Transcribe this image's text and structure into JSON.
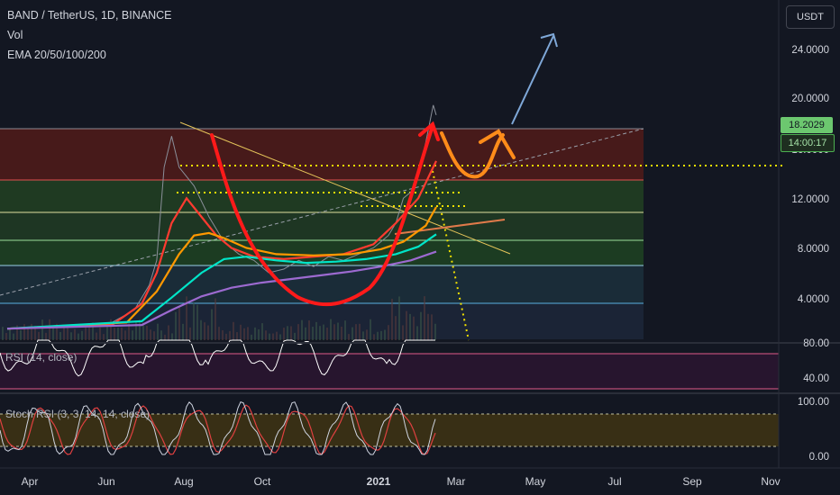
{
  "header": {
    "symbol": "BAND / TetherUS, 1D, BINANCE",
    "vol": "Vol",
    "ema": "EMA 20/50/100/200"
  },
  "currency_button": "USDT",
  "price_tag": {
    "price": "18.2029",
    "countdown": "14:00:17"
  },
  "indicators": {
    "rsi": "RSI (14, close)",
    "stoch": "Stoch RSI (3, 3, 14, 14, close)"
  },
  "colors": {
    "background": "#131722",
    "rsi_line": "#ffffff",
    "stoch_k": "#cfd4e0",
    "stoch_d": "#e04040",
    "cup_annotation": "#ff1a1a",
    "projection_orange": "#ff8c1a",
    "target_arrow": "#7fa8d8"
  },
  "chart_data": [
    {
      "type": "line",
      "title": "BAND / TetherUS, 1D, BINANCE",
      "y_axis": {
        "ticks": [
          "24.0000",
          "20.0000",
          "16.0000",
          "12.0000",
          "8.0000",
          "4.0000"
        ],
        "range": [
          0,
          26
        ]
      },
      "x_axis": {
        "ticks": [
          "Apr",
          "Jun",
          "Aug",
          "Oct",
          "2021",
          "Mar",
          "May",
          "Jul",
          "Sep",
          "Nov"
        ]
      },
      "current_price": 18.2029,
      "series": [
        {
          "name": "BANDUSDT",
          "color": "#8a8f99",
          "points": [
            [
              0,
              1.0
            ],
            [
              6,
              1.1
            ],
            [
              10,
              1.2
            ],
            [
              14,
              1.5
            ],
            [
              17,
              2.5
            ],
            [
              19,
              4.5
            ],
            [
              20,
              6.5
            ],
            [
              21,
              14.0
            ],
            [
              22,
              16.5
            ],
            [
              23,
              14.0
            ],
            [
              25,
              12.5
            ],
            [
              27,
              10.0
            ],
            [
              29,
              8.0
            ],
            [
              31,
              7.0
            ],
            [
              33,
              6.5
            ],
            [
              35,
              5.5
            ],
            [
              37,
              5.8
            ],
            [
              39,
              6.5
            ],
            [
              41,
              6.0
            ],
            [
              43,
              6.8
            ],
            [
              45,
              6.5
            ],
            [
              47,
              7.0
            ],
            [
              49,
              7.5
            ],
            [
              51,
              8.5
            ],
            [
              52,
              9.5
            ],
            [
              53,
              11.5
            ],
            [
              54,
              12.0
            ],
            [
              55,
              13.5
            ],
            [
              56,
              16.0
            ],
            [
              57,
              19.0
            ],
            [
              57.4,
              18.2
            ]
          ]
        },
        {
          "name": "EMA 20",
          "color": "#ff3b30",
          "points": [
            [
              0,
              1.0
            ],
            [
              14,
              1.3
            ],
            [
              18,
              3.0
            ],
            [
              20,
              5.5
            ],
            [
              22,
              9.5
            ],
            [
              24,
              11.5
            ],
            [
              26,
              10.0
            ],
            [
              28,
              8.5
            ],
            [
              30,
              7.5
            ],
            [
              33,
              6.8
            ],
            [
              37,
              6.6
            ],
            [
              41,
              6.8
            ],
            [
              45,
              7.0
            ],
            [
              49,
              7.8
            ],
            [
              52,
              9.5
            ],
            [
              55,
              11.5
            ],
            [
              57.4,
              14.5
            ]
          ]
        },
        {
          "name": "EMA 50",
          "color": "#ff9800",
          "points": [
            [
              0,
              1.0
            ],
            [
              16,
              1.5
            ],
            [
              20,
              4.0
            ],
            [
              23,
              7.0
            ],
            [
              25,
              8.5
            ],
            [
              27,
              8.7
            ],
            [
              29,
              8.3
            ],
            [
              32,
              7.5
            ],
            [
              36,
              7.0
            ],
            [
              41,
              6.9
            ],
            [
              46,
              7.0
            ],
            [
              50,
              7.4
            ],
            [
              53,
              8.0
            ],
            [
              56,
              9.3
            ],
            [
              57.4,
              10.8
            ]
          ]
        },
        {
          "name": "EMA 100",
          "color": "#00e5c8",
          "points": [
            [
              0,
              1.0
            ],
            [
              18,
              1.6
            ],
            [
              22,
              3.5
            ],
            [
              26,
              5.5
            ],
            [
              29,
              6.6
            ],
            [
              32,
              6.8
            ],
            [
              36,
              6.5
            ],
            [
              40,
              6.3
            ],
            [
              44,
              6.4
            ],
            [
              48,
              6.6
            ],
            [
              52,
              7.0
            ],
            [
              55,
              7.6
            ],
            [
              57.4,
              8.6
            ]
          ]
        },
        {
          "name": "EMA 200",
          "color": "#9c6ad0",
          "points": [
            [
              0,
              1.0
            ],
            [
              18,
              1.3
            ],
            [
              22,
              2.5
            ],
            [
              26,
              3.6
            ],
            [
              30,
              4.3
            ],
            [
              34,
              4.7
            ],
            [
              38,
              5.0
            ],
            [
              42,
              5.3
            ],
            [
              46,
              5.6
            ],
            [
              50,
              6.0
            ],
            [
              54,
              6.5
            ],
            [
              57.4,
              7.2
            ]
          ]
        }
      ]
    },
    {
      "type": "line",
      "title": "RSI (14, close)",
      "ylim": [
        20,
        90
      ],
      "y_ticks": [
        "80.00",
        "40.00"
      ],
      "bands": [
        70,
        30
      ]
    },
    {
      "type": "line",
      "title": "Stoch RSI (3, 3, 14, 14, close)",
      "ylim": [
        -5,
        105
      ],
      "y_ticks": [
        "100.00",
        "0.00"
      ],
      "bands": [
        80,
        20
      ]
    }
  ]
}
